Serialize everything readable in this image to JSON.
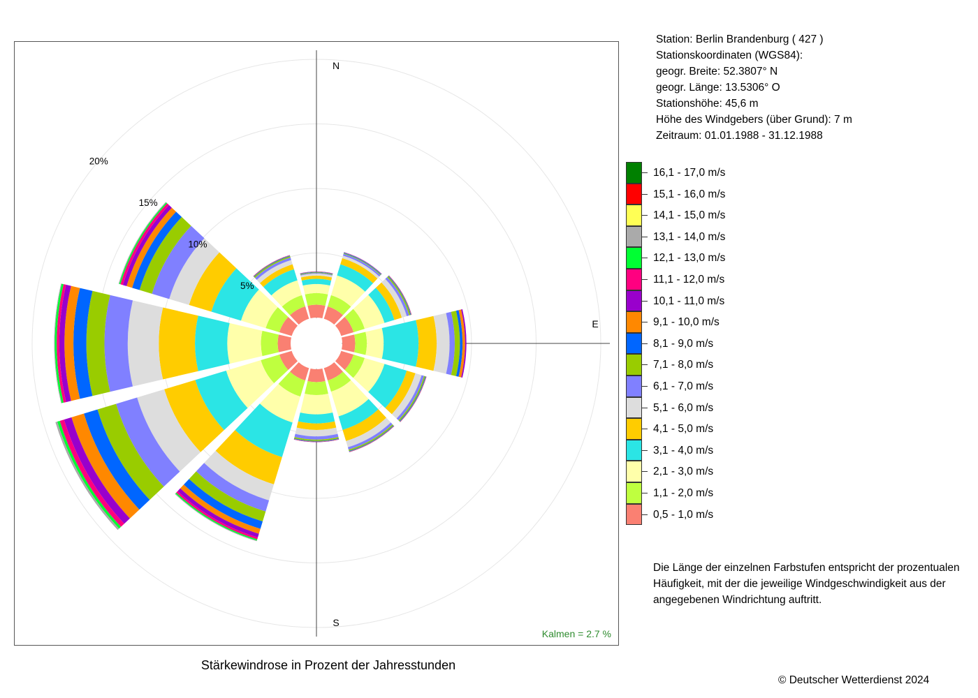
{
  "station": {
    "lines": [
      "Station:  Berlin Brandenburg  ( 427 )",
      "Stationskoordinaten (WGS84):",
      "geogr. Breite: 52.3807° N",
      "geogr. Länge: 13.5306° O",
      "Stationshöhe: 45,6 m",
      "Höhe des Windgebers (über Grund): 7 m",
      "Zeitraum: 01.01.1988 - 31.12.1988"
    ]
  },
  "description": "Die Länge der einzelnen Farbstufen entspricht der prozentualen Häufigkeit, mit der die jeweilige Windgeschwindigkeit aus der angegebenen Windrichtung auftritt.",
  "copyright": "© Deutscher Wetterdienst  2024",
  "chart_data": {
    "type": "wind-rose",
    "title": "Stärkewindrose in Prozent der Jahresstunden",
    "calm_label": "Kalmen  =  2.7 %",
    "calm_percent": 2.7,
    "calm_color": "#2e8b2e",
    "directions_deg": [
      0,
      30,
      60,
      90,
      120,
      150,
      180,
      210,
      240,
      270,
      300,
      330
    ],
    "compass": [
      {
        "label": "N",
        "deg": 0
      },
      {
        "label": "E",
        "deg": 90
      },
      {
        "label": "S",
        "deg": 180
      }
    ],
    "rings": [
      5,
      10,
      15,
      20
    ],
    "ring_labels": [
      "5%",
      "10%",
      "15%",
      "20%"
    ],
    "r_max": 20,
    "classes": [
      {
        "label": "0,5 - 1,0 m/s",
        "color": "#fa8072"
      },
      {
        "label": "1,1 - 2,0 m/s",
        "color": "#bfff3f"
      },
      {
        "label": "2,1 - 3,0 m/s",
        "color": "#ffffaa"
      },
      {
        "label": "3,1 - 4,0 m/s",
        "color": "#2be5e5"
      },
      {
        "label": "4,1 - 5,0 m/s",
        "color": "#ffcc00"
      },
      {
        "label": "5,1 - 6,0 m/s",
        "color": "#dddddd"
      },
      {
        "label": "6,1 - 7,0 m/s",
        "color": "#8080ff"
      },
      {
        "label": "7,1 - 8,0 m/s",
        "color": "#99cc00"
      },
      {
        "label": "8,1 - 9,0 m/s",
        "color": "#0066ff"
      },
      {
        "label": "9,1 - 10,0 m/s",
        "color": "#ff8800"
      },
      {
        "label": "10,1 - 11,0 m/s",
        "color": "#9900cc"
      },
      {
        "label": "11,1 - 12,0 m/s",
        "color": "#ff0080"
      },
      {
        "label": "12,1 - 13,0 m/s",
        "color": "#00ff33"
      },
      {
        "label": "13,1 - 14,0 m/s",
        "color": "#aaaaaa"
      },
      {
        "label": "14,1 - 15,0 m/s",
        "color": "#ffff55"
      },
      {
        "label": "15,1 - 16,0 m/s",
        "color": "#ff0000"
      },
      {
        "label": "16,1 - 17,0 m/s",
        "color": "#008000"
      }
    ],
    "cumulative_percent": [
      [
        1.0,
        1.9,
        2.6,
        3.0,
        3.25,
        3.4,
        3.45,
        3.5,
        3.53,
        3.55,
        3.57
      ],
      [
        1.0,
        1.9,
        3.5,
        4.4,
        4.9,
        5.1,
        5.25,
        5.3,
        5.35,
        5.37,
        5.39
      ],
      [
        1.0,
        1.9,
        3.5,
        4.3,
        4.9,
        5.3,
        5.5,
        5.6,
        5.65,
        5.68,
        5.7
      ],
      [
        1.0,
        1.9,
        3.2,
        5.9,
        7.3,
        8.3,
        8.7,
        9.1,
        9.3,
        9.5,
        9.6
      ],
      [
        1.0,
        1.9,
        3.5,
        5.3,
        6.0,
        6.5,
        6.7,
        6.8,
        6.85,
        6.88,
        6.9
      ],
      [
        1.0,
        1.9,
        3.9,
        5.0,
        5.9,
        6.4,
        6.6,
        6.7,
        6.75,
        6.78,
        6.8
      ],
      [
        1.0,
        2.0,
        3.5,
        4.2,
        4.7,
        5.2,
        5.45,
        5.55,
        5.6,
        5.63,
        5.65
      ],
      [
        1.0,
        2.3,
        4.4,
        7.2,
        9.4,
        10.7,
        11.6,
        12.4,
        13.0,
        13.4,
        13.7,
        13.85,
        13.95,
        14.0
      ],
      [
        1.0,
        2.5,
        5.3,
        7.8,
        10.3,
        12.5,
        14.2,
        15.7,
        16.8,
        17.8,
        18.4,
        18.75,
        18.95,
        19.1
      ],
      [
        1.0,
        2.3,
        4.9,
        7.4,
        10.2,
        12.6,
        14.4,
        15.8,
        16.8,
        17.5,
        17.9,
        18.1,
        18.25,
        18.3
      ],
      [
        1.0,
        2.1,
        4.1,
        6.5,
        8.3,
        9.9,
        11.3,
        12.3,
        12.9,
        13.35,
        13.65,
        13.85,
        13.95,
        14.0
      ],
      [
        1.0,
        1.9,
        3.1,
        4.0,
        4.4,
        4.75,
        4.95,
        5.05,
        5.1,
        5.13,
        5.15
      ]
    ]
  }
}
